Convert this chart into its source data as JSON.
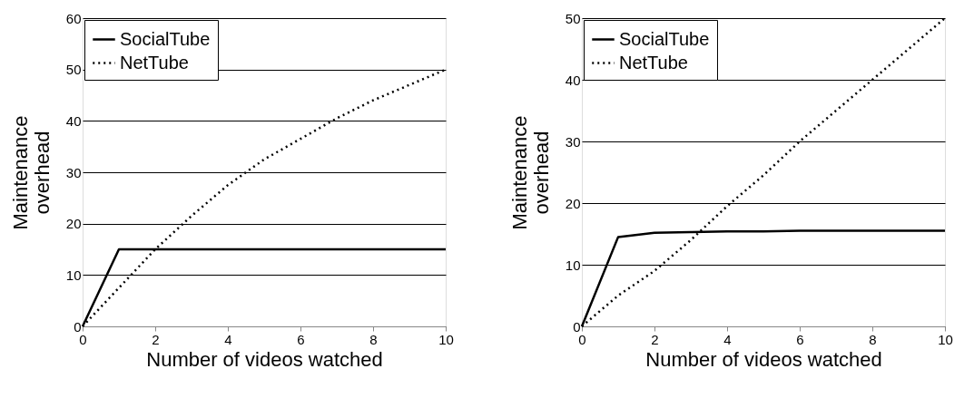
{
  "chart_data": [
    {
      "type": "line",
      "xlabel": "Number of videos watched",
      "ylabel": "Maintenance overhead",
      "x": [
        0,
        1,
        2,
        3,
        4,
        5,
        6,
        7,
        8,
        9,
        10
      ],
      "xlim": [
        0,
        10
      ],
      "xticks": [
        0,
        2,
        4,
        6,
        8,
        10
      ],
      "ylim": [
        0,
        60
      ],
      "yticks": [
        0,
        10,
        20,
        30,
        40,
        50,
        60
      ],
      "grid": "y",
      "legend": "top left",
      "marker": "none",
      "series": [
        {
          "name": "SocialTube",
          "color": "#000000",
          "line_style": "solid",
          "values": [
            0,
            15,
            15,
            15,
            15,
            15,
            15,
            15,
            15,
            15,
            15
          ]
        },
        {
          "name": "NetTube",
          "color": "#000000",
          "line_style": "dotted",
          "values": [
            0,
            7.5,
            15,
            21.5,
            27.5,
            32.5,
            36.5,
            40.5,
            44,
            47,
            50
          ]
        }
      ]
    },
    {
      "type": "line",
      "xlabel": "Number of videos watched",
      "ylabel": "Maintenance overhead",
      "x": [
        0,
        1,
        2,
        3,
        4,
        5,
        6,
        7,
        8,
        9,
        10
      ],
      "xlim": [
        0,
        10
      ],
      "xticks": [
        0,
        2,
        4,
        6,
        8,
        10
      ],
      "ylim": [
        0,
        50
      ],
      "yticks": [
        0,
        10,
        20,
        30,
        40,
        50
      ],
      "grid": "y",
      "legend": "top left",
      "marker": "none",
      "series": [
        {
          "name": "SocialTube",
          "color": "#000000",
          "line_style": "solid",
          "values": [
            0,
            14.5,
            15.2,
            15.3,
            15.4,
            15.4,
            15.5,
            15.5,
            15.5,
            15.5,
            15.5
          ]
        },
        {
          "name": "NetTube",
          "color": "#000000",
          "line_style": "dotted",
          "values": [
            0,
            5,
            9,
            14,
            19.5,
            24.5,
            30,
            35,
            40,
            45,
            50
          ]
        }
      ]
    }
  ]
}
